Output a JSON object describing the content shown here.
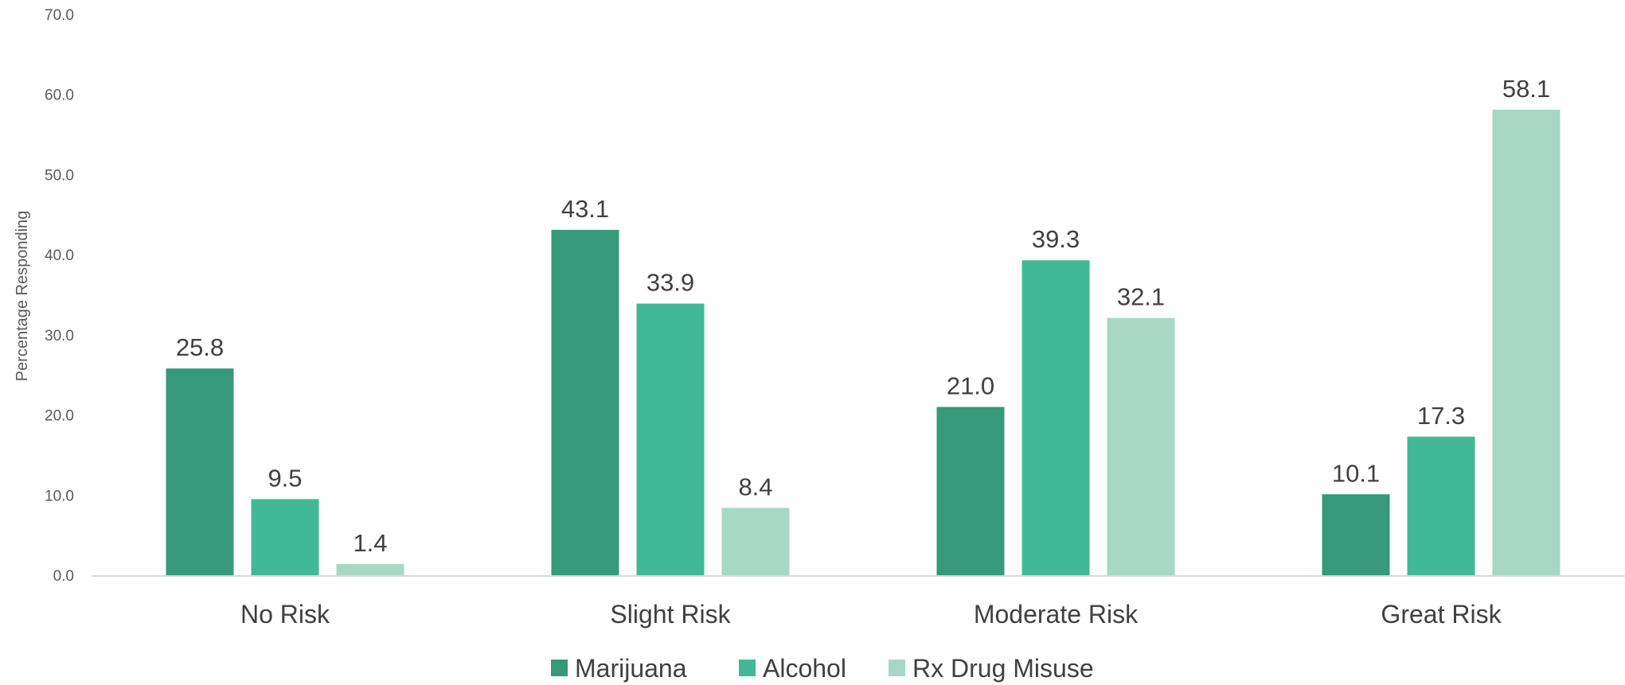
{
  "chart_data": {
    "type": "bar",
    "title": "",
    "xlabel": "",
    "ylabel": "Percentage Responding",
    "ylim": [
      0,
      70
    ],
    "yticks": [
      "0.0",
      "10.0",
      "20.0",
      "30.0",
      "40.0",
      "50.0",
      "60.0",
      "70.0"
    ],
    "grid": false,
    "legend_position": "bottom",
    "categories": [
      "No Risk",
      "Slight Risk",
      "Moderate Risk",
      "Great Risk"
    ],
    "series": [
      {
        "name": "Marijuana",
        "color": "#35997a",
        "values": [
          25.8,
          43.1,
          21.0,
          10.1
        ]
      },
      {
        "name": "Alcohol",
        "color": "#41b996",
        "values": [
          9.5,
          33.9,
          39.3,
          17.3
        ]
      },
      {
        "name": "Rx Drug Misuse",
        "color": "#a7d7c5",
        "values": [
          1.4,
          8.4,
          32.1,
          58.1
        ]
      }
    ]
  }
}
